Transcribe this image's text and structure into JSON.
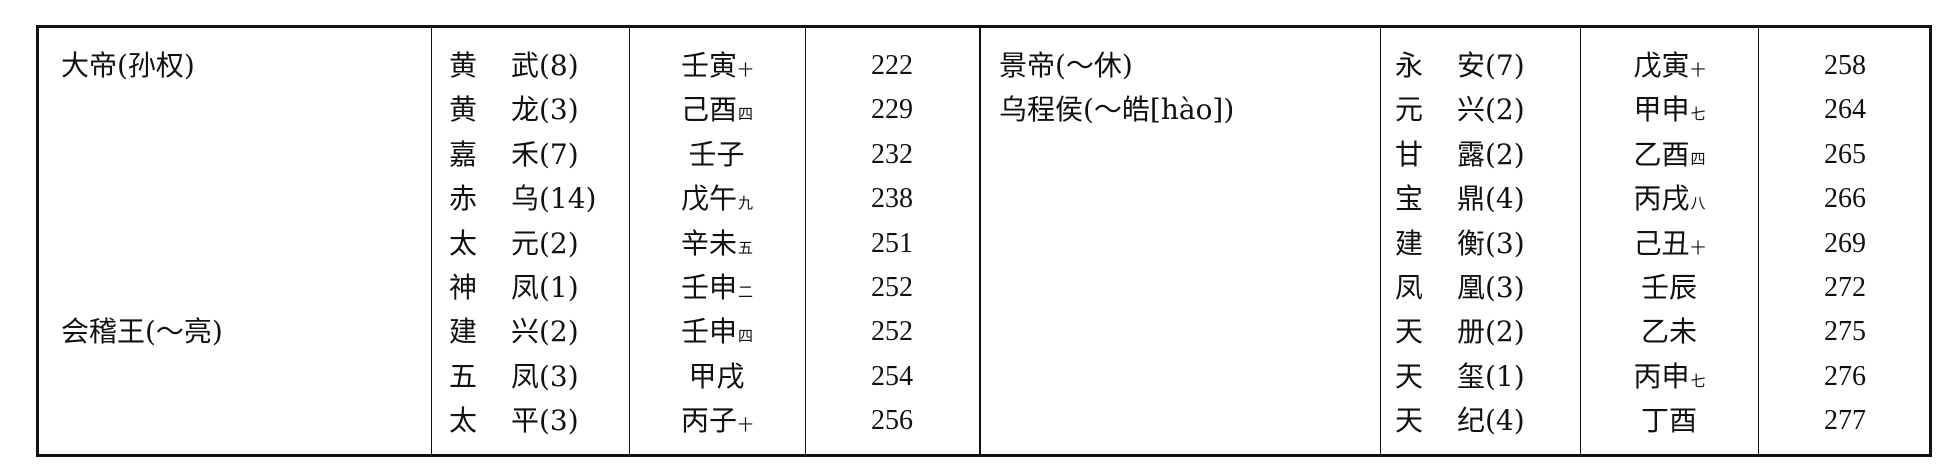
{
  "sections": [
    {
      "rulers": [
        {
          "row": 0,
          "name": "大帝(孙权)"
        },
        {
          "row": 6,
          "name": "会稽王(～亮)"
        }
      ],
      "eras": [
        {
          "first": "黄",
          "second": "武(8)",
          "ganzhi": "壬寅",
          "month": "十",
          "year": "222"
        },
        {
          "first": "黄",
          "second": "龙(3)",
          "ganzhi": "己酉",
          "month": "四",
          "year": "229"
        },
        {
          "first": "嘉",
          "second": "禾(7)",
          "ganzhi": "壬子",
          "month": "",
          "year": "232"
        },
        {
          "first": "赤",
          "second": "乌(14)",
          "ganzhi": "戊午",
          "month": "九",
          "year": "238"
        },
        {
          "first": "太",
          "second": "元(2)",
          "ganzhi": "辛未",
          "month": "五",
          "year": "251"
        },
        {
          "first": "神",
          "second": "凤(1)",
          "ganzhi": "壬申",
          "month": "二",
          "year": "252"
        },
        {
          "first": "建",
          "second": "兴(2)",
          "ganzhi": "壬申",
          "month": "四",
          "year": "252"
        },
        {
          "first": "五",
          "second": "凤(3)",
          "ganzhi": "甲戌",
          "month": "",
          "year": "254"
        },
        {
          "first": "太",
          "second": "平(3)",
          "ganzhi": "丙子",
          "month": "十",
          "year": "256"
        }
      ]
    },
    {
      "rulers": [
        {
          "row": 0,
          "name": "景帝(～休)"
        },
        {
          "row": 1,
          "name": "乌程侯(～皓[hào])"
        }
      ],
      "eras": [
        {
          "first": "永",
          "second": "安(7)",
          "ganzhi": "戊寅",
          "month": "十",
          "year": "258"
        },
        {
          "first": "元",
          "second": "兴(2)",
          "ganzhi": "甲申",
          "month": "七",
          "year": "264"
        },
        {
          "first": "甘",
          "second": "露(2)",
          "ganzhi": "乙酉",
          "month": "四",
          "year": "265"
        },
        {
          "first": "宝",
          "second": "鼎(4)",
          "ganzhi": "丙戌",
          "month": "八",
          "year": "266"
        },
        {
          "first": "建",
          "second": "衡(3)",
          "ganzhi": "己丑",
          "month": "十",
          "year": "269"
        },
        {
          "first": "凤",
          "second": "凰(3)",
          "ganzhi": "壬辰",
          "month": "",
          "year": "272"
        },
        {
          "first": "天",
          "second": "册(2)",
          "ganzhi": "乙未",
          "month": "",
          "year": "275"
        },
        {
          "first": "天",
          "second": "玺(1)",
          "ganzhi": "丙申",
          "month": "七",
          "year": "276"
        },
        {
          "first": "天",
          "second": "纪(4)",
          "ganzhi": "丁酉",
          "month": "",
          "year": "277"
        }
      ]
    }
  ]
}
